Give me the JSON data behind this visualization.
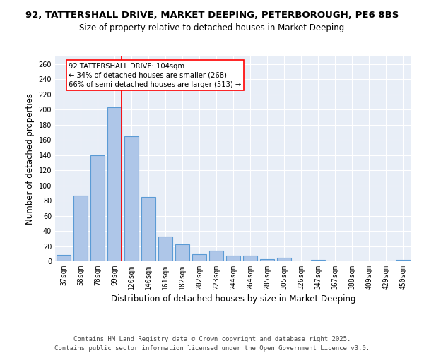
{
  "title_line1": "92, TATTERSHALL DRIVE, MARKET DEEPING, PETERBOROUGH, PE6 8BS",
  "title_line2": "Size of property relative to detached houses in Market Deeping",
  "xlabel": "Distribution of detached houses by size in Market Deeping",
  "ylabel": "Number of detached properties",
  "categories": [
    "37sqm",
    "58sqm",
    "78sqm",
    "99sqm",
    "120sqm",
    "140sqm",
    "161sqm",
    "182sqm",
    "202sqm",
    "223sqm",
    "244sqm",
    "264sqm",
    "285sqm",
    "305sqm",
    "326sqm",
    "347sqm",
    "367sqm",
    "388sqm",
    "409sqm",
    "429sqm",
    "450sqm"
  ],
  "values": [
    8,
    87,
    140,
    203,
    165,
    85,
    33,
    22,
    9,
    14,
    7,
    7,
    3,
    5,
    0,
    2,
    0,
    0,
    0,
    0,
    2
  ],
  "bar_color": "#aec6e8",
  "bar_edge_color": "#5b9bd5",
  "vline_color": "red",
  "annotation_text": "92 TATTERSHALL DRIVE: 104sqm\n← 34% of detached houses are smaller (268)\n66% of semi-detached houses are larger (513) →",
  "annotation_box_color": "white",
  "annotation_box_edge": "red",
  "ylim": [
    0,
    270
  ],
  "yticks": [
    0,
    20,
    40,
    60,
    80,
    100,
    120,
    140,
    160,
    180,
    200,
    220,
    240,
    260
  ],
  "background_color": "#e8eef7",
  "footer_text": "Contains HM Land Registry data © Crown copyright and database right 2025.\nContains public sector information licensed under the Open Government Licence v3.0.",
  "title_fontsize": 9.5,
  "subtitle_fontsize": 8.5,
  "tick_fontsize": 7,
  "label_fontsize": 8.5,
  "footer_fontsize": 6.5
}
